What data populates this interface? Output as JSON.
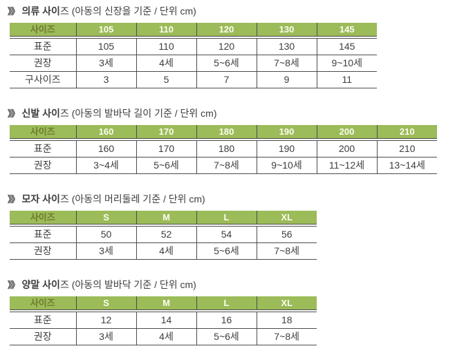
{
  "colors": {
    "header_bg": "#9cbb59",
    "header_value_text": "#fcfdf1",
    "header_label_text": "#6e7a2f",
    "body_text": "#3d3d3d",
    "grid_line": "#4b4b4b"
  },
  "sections": [
    {
      "slug": "clothing",
      "title_prefix": "》》",
      "title_bold": "의류 사이",
      "title_rest": "즈 (아동의 신장을 기준 / 단위 cm)",
      "table": {
        "corner_label": "사이즈",
        "columns": [
          "105",
          "110",
          "120",
          "130",
          "145"
        ],
        "rows": [
          {
            "label": "표준",
            "cells": [
              "105",
              "110",
              "120",
              "130",
              "145"
            ]
          },
          {
            "label": "권장",
            "cells": [
              "3세",
              "4세",
              "5~6세",
              "7~8세",
              "9~10세"
            ]
          },
          {
            "label": "구사이즈",
            "cells": [
              "3",
              "5",
              "7",
              "9",
              "11"
            ]
          }
        ]
      }
    },
    {
      "slug": "shoes",
      "title_prefix": "》》",
      "title_bold": "신발 사이",
      "title_rest": "즈 (아동의 발바닥 길이 기준 / 단위 cm)",
      "table": {
        "corner_label": "사이즈",
        "columns": [
          "160",
          "170",
          "180",
          "190",
          "200",
          "210"
        ],
        "rows": [
          {
            "label": "표준",
            "cells": [
              "160",
              "170",
              "180",
              "190",
              "200",
              "210"
            ]
          },
          {
            "label": "권장",
            "cells": [
              "3~4세",
              "5~6세",
              "7~8세",
              "9~10세",
              "11~12세",
              "13~14세"
            ]
          }
        ]
      }
    },
    {
      "slug": "hats",
      "title_prefix": "》》",
      "title_bold": "모자 사이",
      "title_rest": "즈 (아동의 머리둘레 기준 / 단위 cm)",
      "table": {
        "corner_label": "사이즈",
        "columns": [
          "S",
          "M",
          "L",
          "XL"
        ],
        "rows": [
          {
            "label": "표준",
            "cells": [
              "50",
              "52",
              "54",
              "56"
            ]
          },
          {
            "label": "권장",
            "cells": [
              "3세",
              "4세",
              "5~6세",
              "7~8세"
            ]
          }
        ]
      }
    },
    {
      "slug": "socks",
      "title_prefix": "》》",
      "title_bold": "양말 사이",
      "title_rest": "즈 (아동의 발바닥 기준 / 단위 cm)",
      "table": {
        "corner_label": "사이즈",
        "columns": [
          "S",
          "M",
          "L",
          "XL"
        ],
        "rows": [
          {
            "label": "표준",
            "cells": [
              "12",
              "14",
              "16",
              "18"
            ]
          },
          {
            "label": "권장",
            "cells": [
              "3세",
              "4세",
              "5~6세",
              "7~8세"
            ]
          }
        ]
      }
    }
  ]
}
